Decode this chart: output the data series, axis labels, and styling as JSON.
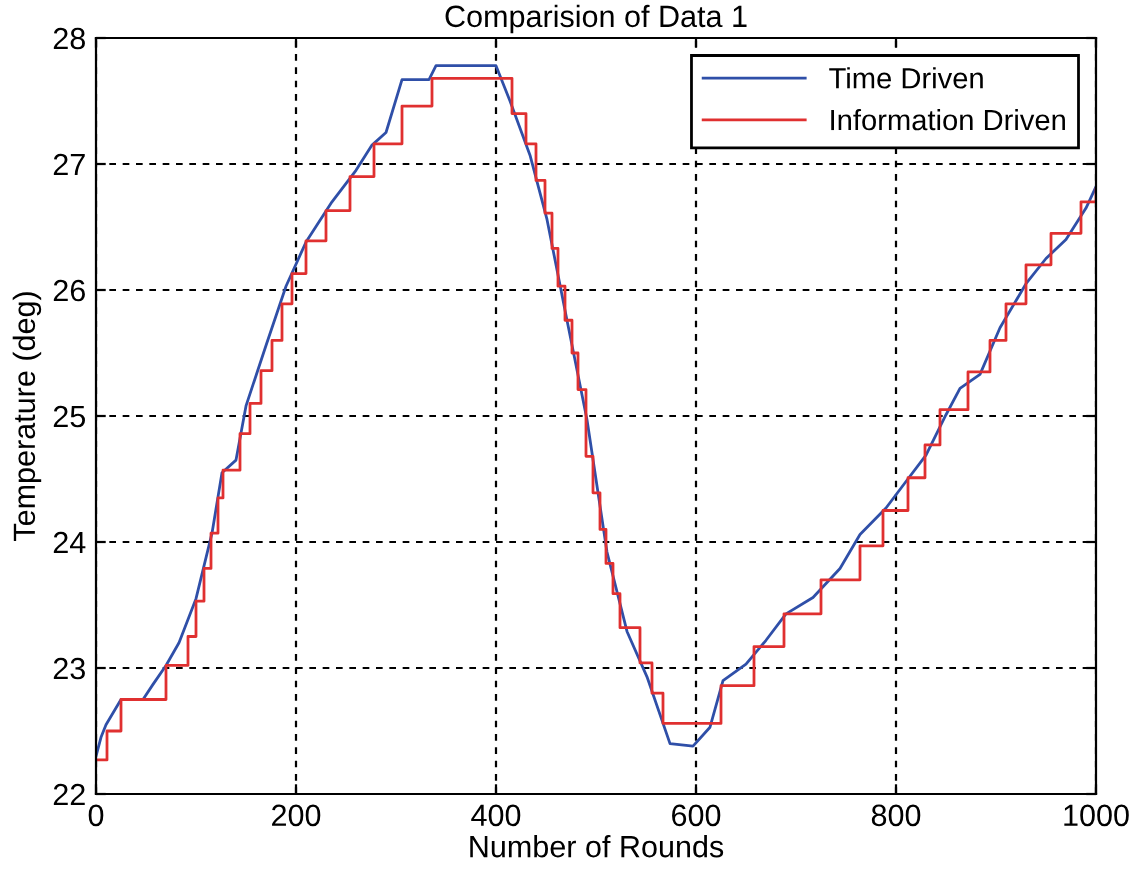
{
  "chart_data": {
    "type": "line",
    "title": "Comparision of Data 1",
    "xlabel": "Number of Rounds",
    "ylabel": "Temperature (deg)",
    "xlim": [
      0,
      1000
    ],
    "ylim": [
      22,
      28
    ],
    "xticks": [
      0,
      200,
      400,
      600,
      800,
      1000
    ],
    "yticks": [
      22,
      23,
      24,
      25,
      26,
      27,
      28
    ],
    "grid": true,
    "legend": "top right",
    "line_style": "solid",
    "marker": "none",
    "series": [
      {
        "name": "Time Driven",
        "color": "#2f4fa8",
        "x": [
          0,
          5,
          10,
          25,
          47,
          57,
          70,
          83,
          100,
          116,
          126,
          140,
          150,
          170,
          190,
          210,
          236,
          260,
          276,
          290,
          306,
          333,
          340,
          400,
          414,
          434,
          451,
          471,
          491,
          511,
          531,
          551,
          574,
          597,
          614,
          627,
          650,
          670,
          690,
          717,
          744,
          764,
          790,
          810,
          830,
          850,
          864,
          884,
          904,
          930,
          950,
          970,
          990,
          1000
        ],
        "values": [
          22.3,
          22.45,
          22.55,
          22.75,
          22.75,
          22.87,
          23.02,
          23.2,
          23.55,
          24.07,
          24.55,
          24.65,
          25.08,
          25.56,
          26.03,
          26.38,
          26.7,
          26.95,
          27.15,
          27.25,
          27.67,
          27.67,
          27.78,
          27.78,
          27.5,
          27.07,
          26.56,
          25.76,
          24.97,
          23.92,
          23.29,
          22.93,
          22.4,
          22.38,
          22.53,
          22.9,
          23.03,
          23.22,
          23.43,
          23.56,
          23.79,
          24.06,
          24.27,
          24.48,
          24.69,
          25.01,
          25.22,
          25.33,
          25.7,
          26.05,
          26.25,
          26.4,
          26.65,
          26.82
        ]
      },
      {
        "name": "Information Driven",
        "color": "#e03030",
        "type": "step",
        "x": [
          0,
          11,
          25,
          70,
          92,
          100,
          108,
          115,
          122,
          127,
          144,
          154,
          165,
          176,
          186,
          196,
          210,
          230,
          254,
          278,
          306,
          336,
          416,
          430,
          440,
          449,
          456,
          462,
          469,
          476,
          482,
          490,
          497,
          504,
          510,
          517,
          524,
          544,
          556,
          567,
          625,
          658,
          688,
          725,
          764,
          787,
          812,
          829,
          844,
          872,
          894,
          910,
          930,
          955,
          985,
          1000
        ],
        "values": [
          22.27,
          22.5,
          22.75,
          23.02,
          23.25,
          23.53,
          23.79,
          24.07,
          24.35,
          24.57,
          24.86,
          25.1,
          25.36,
          25.6,
          25.89,
          26.13,
          26.39,
          26.63,
          26.9,
          27.16,
          27.46,
          27.68,
          27.4,
          27.16,
          26.87,
          26.61,
          26.33,
          26.03,
          25.76,
          25.5,
          25.21,
          24.68,
          24.39,
          24.1,
          23.83,
          23.59,
          23.32,
          23.04,
          22.8,
          22.56,
          22.86,
          23.17,
          23.43,
          23.7,
          23.97,
          24.25,
          24.51,
          24.77,
          25.05,
          25.35,
          25.6,
          25.89,
          26.2,
          26.45,
          26.7,
          26.8
        ]
      }
    ]
  }
}
